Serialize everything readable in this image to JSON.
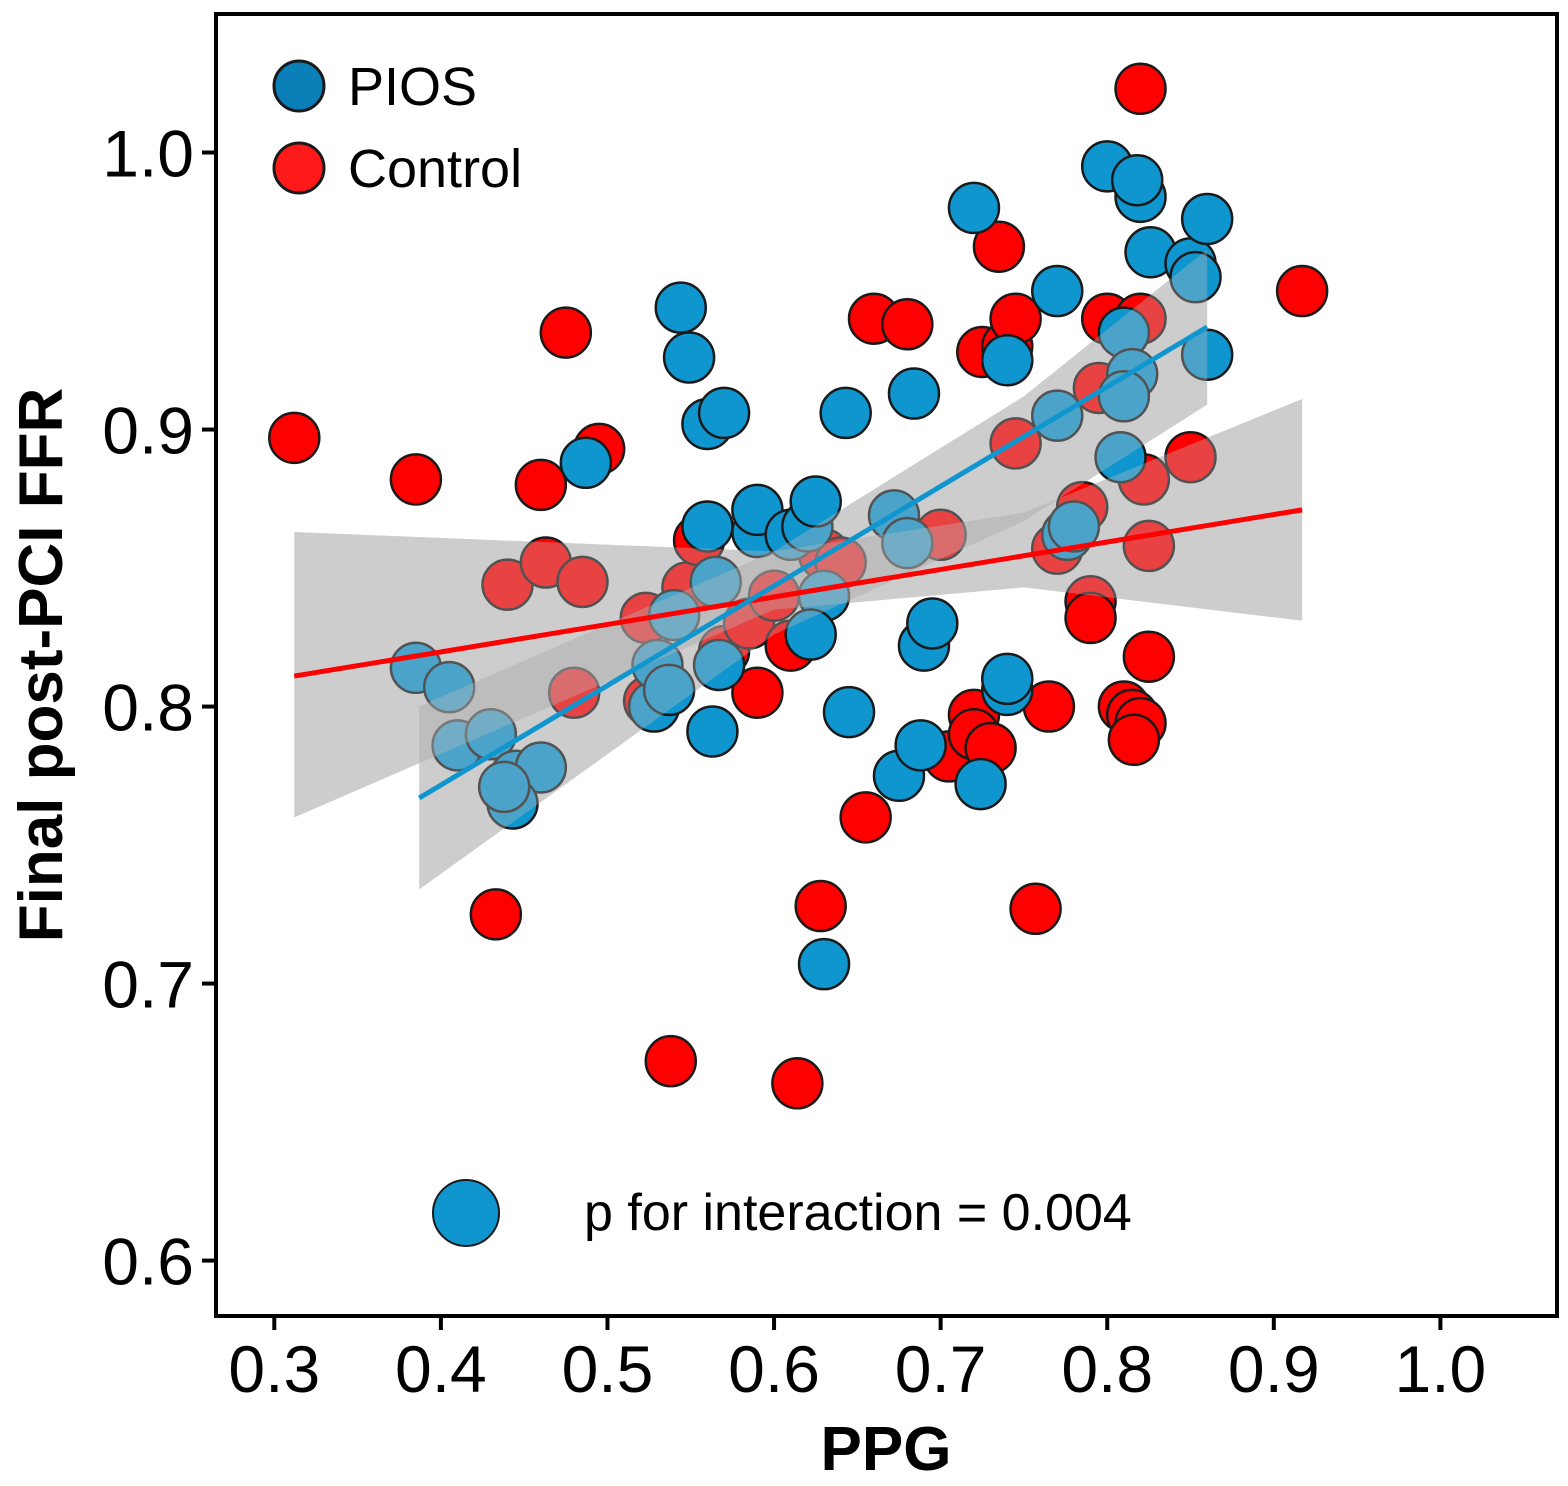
{
  "chart_data": {
    "type": "scatter",
    "xlabel": "PPG",
    "ylabel": "Final post-PCI FFR",
    "xlim": [
      0.265,
      1.07
    ],
    "ylim": [
      0.58,
      1.05
    ],
    "x_ticks": [
      0.3,
      0.4,
      0.5,
      0.6,
      0.7,
      0.8,
      0.9,
      1.0
    ],
    "x_tick_labels": [
      "0.3",
      "0.4",
      "0.5",
      "0.6",
      "0.7",
      "0.8",
      "0.9",
      "1.0"
    ],
    "y_ticks": [
      0.6,
      0.7,
      0.8,
      0.9,
      1.0
    ],
    "y_tick_labels": [
      "0.6",
      "0.7",
      "0.8",
      "0.9",
      "1.0"
    ],
    "grid": false,
    "legend_position": "top-left",
    "annotation": "p for interaction = 0.004",
    "series": [
      {
        "name": "PIOS",
        "color": "#0f96cf",
        "legend_color": "#0b7fb8",
        "fit": {
          "x": [
            0.387,
            0.86
          ],
          "y": [
            0.767,
            0.937
          ]
        },
        "ci_upper": [
          [
            0.387,
            0.8
          ],
          [
            0.6,
            0.856
          ],
          [
            0.75,
            0.912
          ],
          [
            0.86,
            0.965
          ]
        ],
        "ci_lower": [
          [
            0.387,
            0.734
          ],
          [
            0.6,
            0.826
          ],
          [
            0.75,
            0.867
          ],
          [
            0.86,
            0.909
          ]
        ],
        "points": [
          [
            0.385,
            0.814
          ],
          [
            0.405,
            0.807
          ],
          [
            0.41,
            0.786
          ],
          [
            0.43,
            0.79
          ],
          [
            0.445,
            0.775
          ],
          [
            0.46,
            0.778
          ],
          [
            0.443,
            0.765
          ],
          [
            0.438,
            0.771
          ],
          [
            0.487,
            0.888
          ],
          [
            0.544,
            0.944
          ],
          [
            0.549,
            0.926
          ],
          [
            0.56,
            0.902
          ],
          [
            0.57,
            0.906
          ],
          [
            0.528,
            0.8
          ],
          [
            0.53,
            0.815
          ],
          [
            0.537,
            0.806
          ],
          [
            0.54,
            0.833
          ],
          [
            0.56,
            0.865
          ],
          [
            0.565,
            0.845
          ],
          [
            0.567,
            0.815
          ],
          [
            0.563,
            0.791
          ],
          [
            0.59,
            0.863
          ],
          [
            0.59,
            0.871
          ],
          [
            0.61,
            0.862
          ],
          [
            0.62,
            0.865
          ],
          [
            0.625,
            0.874
          ],
          [
            0.63,
            0.84
          ],
          [
            0.622,
            0.826
          ],
          [
            0.63,
            0.707
          ],
          [
            0.643,
            0.906
          ],
          [
            0.645,
            0.798
          ],
          [
            0.672,
            0.869
          ],
          [
            0.68,
            0.859
          ],
          [
            0.684,
            0.913
          ],
          [
            0.69,
            0.822
          ],
          [
            0.695,
            0.83
          ],
          [
            0.675,
            0.775
          ],
          [
            0.688,
            0.786
          ],
          [
            0.72,
            0.98
          ],
          [
            0.74,
            0.925
          ],
          [
            0.74,
            0.806
          ],
          [
            0.74,
            0.81
          ],
          [
            0.724,
            0.772
          ],
          [
            0.77,
            0.95
          ],
          [
            0.77,
            0.905
          ],
          [
            0.776,
            0.862
          ],
          [
            0.78,
            0.865
          ],
          [
            0.8,
            0.995
          ],
          [
            0.81,
            0.935
          ],
          [
            0.82,
            0.984
          ],
          [
            0.818,
            0.99
          ],
          [
            0.826,
            0.964
          ],
          [
            0.815,
            0.92
          ],
          [
            0.81,
            0.912
          ],
          [
            0.808,
            0.89
          ],
          [
            0.85,
            0.96
          ],
          [
            0.853,
            0.955
          ],
          [
            0.86,
            0.976
          ],
          [
            0.86,
            0.927
          ]
        ]
      },
      {
        "name": "Control",
        "color": "#ff0000",
        "legend_color": "#ff1a1a",
        "fit": {
          "x": [
            0.312,
            0.917
          ],
          "y": [
            0.811,
            0.871
          ]
        },
        "ci_upper": [
          [
            0.312,
            0.863
          ],
          [
            0.6,
            0.856
          ],
          [
            0.75,
            0.87
          ],
          [
            0.917,
            0.911
          ]
        ],
        "ci_lower": [
          [
            0.312,
            0.76
          ],
          [
            0.6,
            0.835
          ],
          [
            0.75,
            0.843
          ],
          [
            0.917,
            0.831
          ]
        ],
        "points": [
          [
            0.312,
            0.897
          ],
          [
            0.385,
            0.882
          ],
          [
            0.433,
            0.725
          ],
          [
            0.44,
            0.844
          ],
          [
            0.46,
            0.88
          ],
          [
            0.463,
            0.852
          ],
          [
            0.475,
            0.935
          ],
          [
            0.485,
            0.845
          ],
          [
            0.48,
            0.805
          ],
          [
            0.495,
            0.893
          ],
          [
            0.523,
            0.832
          ],
          [
            0.525,
            0.802
          ],
          [
            0.538,
            0.672
          ],
          [
            0.548,
            0.843
          ],
          [
            0.555,
            0.86
          ],
          [
            0.57,
            0.82
          ],
          [
            0.585,
            0.83
          ],
          [
            0.59,
            0.805
          ],
          [
            0.6,
            0.84
          ],
          [
            0.61,
            0.822
          ],
          [
            0.614,
            0.664
          ],
          [
            0.628,
            0.728
          ],
          [
            0.63,
            0.855
          ],
          [
            0.64,
            0.852
          ],
          [
            0.655,
            0.76
          ],
          [
            0.66,
            0.94
          ],
          [
            0.68,
            0.938
          ],
          [
            0.7,
            0.862
          ],
          [
            0.705,
            0.782
          ],
          [
            0.72,
            0.797
          ],
          [
            0.72,
            0.79
          ],
          [
            0.73,
            0.785
          ],
          [
            0.725,
            0.928
          ],
          [
            0.735,
            0.966
          ],
          [
            0.74,
            0.93
          ],
          [
            0.745,
            0.94
          ],
          [
            0.745,
            0.895
          ],
          [
            0.757,
            0.727
          ],
          [
            0.765,
            0.8
          ],
          [
            0.77,
            0.857
          ],
          [
            0.785,
            0.872
          ],
          [
            0.795,
            0.915
          ],
          [
            0.79,
            0.838
          ],
          [
            0.79,
            0.832
          ],
          [
            0.8,
            0.94
          ],
          [
            0.81,
            0.8
          ],
          [
            0.815,
            0.797
          ],
          [
            0.82,
            0.794
          ],
          [
            0.816,
            0.788
          ],
          [
            0.82,
            0.94
          ],
          [
            0.822,
            0.882
          ],
          [
            0.825,
            0.858
          ],
          [
            0.825,
            0.818
          ],
          [
            0.82,
            1.023
          ],
          [
            0.85,
            0.89
          ],
          [
            0.917,
            0.95
          ]
        ]
      }
    ]
  }
}
